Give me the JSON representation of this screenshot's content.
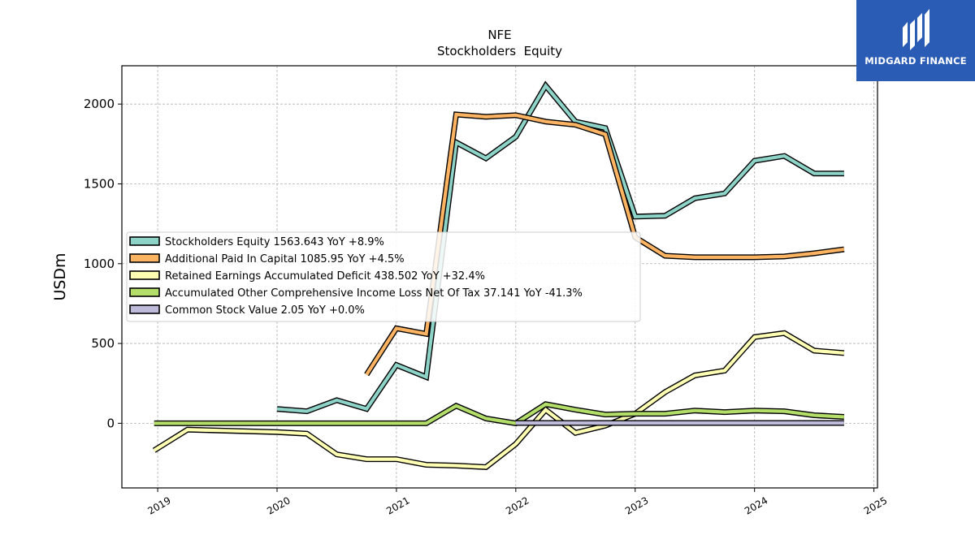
{
  "logo": {
    "text": "MIDGARD FINANCE",
    "bg_color": "#2a5bb5"
  },
  "chart_data": {
    "type": "line",
    "title": "NFE",
    "subtitle": "Stockholders  Equity",
    "xlabel": "",
    "ylabel": "USDm",
    "xlim": [
      2018.7,
      2025.03
    ],
    "ylim": [
      -405,
      2240
    ],
    "x_ticks": [
      2019,
      2020,
      2021,
      2022,
      2023,
      2024,
      2025
    ],
    "y_ticks": [
      0,
      500,
      1000,
      1500,
      2000
    ],
    "grid": true,
    "legend_position": "center-left",
    "series": [
      {
        "name": "Stockholders Equity  1563.643 YoY +8.9%",
        "color": "#8dd3c7",
        "points": [
          [
            2020.0,
            90
          ],
          [
            2020.25,
            75
          ],
          [
            2020.5,
            145
          ],
          [
            2020.75,
            90
          ],
          [
            2021.0,
            365
          ],
          [
            2021.25,
            290
          ],
          [
            2021.5,
            1760
          ],
          [
            2021.75,
            1660
          ],
          [
            2022.0,
            1795
          ],
          [
            2022.25,
            2115
          ],
          [
            2022.5,
            1890
          ],
          [
            2022.75,
            1850
          ],
          [
            2023.0,
            1295
          ],
          [
            2023.25,
            1300
          ],
          [
            2023.5,
            1410
          ],
          [
            2023.75,
            1440
          ],
          [
            2024.0,
            1645
          ],
          [
            2024.25,
            1675
          ],
          [
            2024.5,
            1565
          ],
          [
            2024.75,
            1565
          ]
        ]
      },
      {
        "name": "Additional Paid In Capital  1085.95 YoY +4.5%",
        "color": "#fdb462",
        "points": [
          [
            2020.75,
            305
          ],
          [
            2021.0,
            595
          ],
          [
            2021.25,
            560
          ],
          [
            2021.5,
            1935
          ],
          [
            2021.75,
            1920
          ],
          [
            2022.0,
            1930
          ],
          [
            2022.25,
            1890
          ],
          [
            2022.5,
            1870
          ],
          [
            2022.75,
            1810
          ],
          [
            2023.0,
            1165
          ],
          [
            2023.25,
            1050
          ],
          [
            2023.5,
            1040
          ],
          [
            2023.75,
            1040
          ],
          [
            2024.0,
            1040
          ],
          [
            2024.25,
            1045
          ],
          [
            2024.5,
            1065
          ],
          [
            2024.75,
            1090
          ]
        ]
      },
      {
        "name": "Retained Earnings Accumulated Deficit  438.502 YoY +32.4%",
        "color": "#ffffb3",
        "points": [
          [
            2018.97,
            -170
          ],
          [
            2019.25,
            -40
          ],
          [
            2020.0,
            -55
          ],
          [
            2020.25,
            -65
          ],
          [
            2020.5,
            -195
          ],
          [
            2020.75,
            -225
          ],
          [
            2021.0,
            -225
          ],
          [
            2021.25,
            -260
          ],
          [
            2021.5,
            -265
          ],
          [
            2021.75,
            -275
          ],
          [
            2022.0,
            -130
          ],
          [
            2022.25,
            85
          ],
          [
            2022.5,
            -60
          ],
          [
            2022.75,
            -15
          ],
          [
            2023.0,
            60
          ],
          [
            2023.25,
            195
          ],
          [
            2023.5,
            300
          ],
          [
            2023.75,
            330
          ],
          [
            2024.0,
            540
          ],
          [
            2024.25,
            565
          ],
          [
            2024.5,
            455
          ],
          [
            2024.75,
            440
          ]
        ]
      },
      {
        "name": "Accumulated Other Comprehensive Income Loss Net Of Tax  37.141 YoY -41.3%",
        "color": "#b3de69",
        "points": [
          [
            2018.97,
            0
          ],
          [
            2021.25,
            0
          ],
          [
            2021.5,
            110
          ],
          [
            2021.75,
            30
          ],
          [
            2022.0,
            0
          ],
          [
            2022.25,
            120
          ],
          [
            2022.5,
            85
          ],
          [
            2022.75,
            55
          ],
          [
            2023.0,
            60
          ],
          [
            2023.25,
            60
          ],
          [
            2023.5,
            80
          ],
          [
            2023.75,
            70
          ],
          [
            2024.0,
            80
          ],
          [
            2024.25,
            75
          ],
          [
            2024.5,
            50
          ],
          [
            2024.75,
            40
          ]
        ]
      },
      {
        "name": "Common Stock Value  2.05 YoY +0.0%",
        "color": "#bebada",
        "points": [
          [
            2022.0,
            2
          ],
          [
            2024.75,
            2
          ]
        ]
      }
    ]
  }
}
